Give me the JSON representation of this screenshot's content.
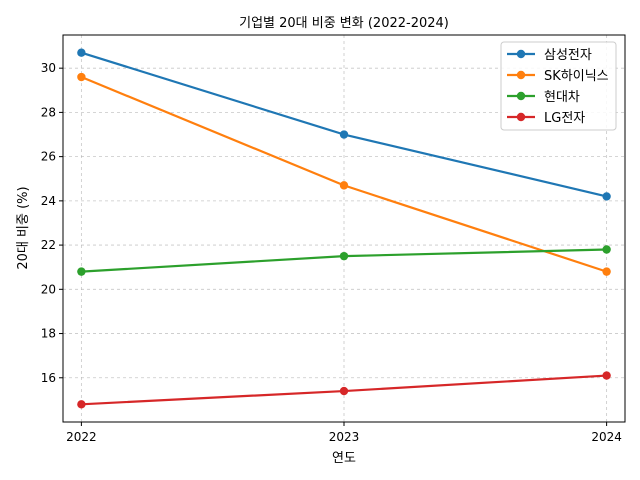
{
  "chart_data": {
    "type": "line",
    "title": "기업별 20대 비중 변화 (2022-2024)",
    "xlabel": "연도",
    "ylabel": "20대 비중 (%)",
    "x": [
      "2022",
      "2023",
      "2024"
    ],
    "xlim": [
      2021.93,
      2024.07
    ],
    "ylim": [
      14.0,
      31.5
    ],
    "yticks": [
      16,
      18,
      20,
      22,
      24,
      26,
      28,
      30
    ],
    "grid": true,
    "legend_position": "top-right",
    "series": [
      {
        "name": "삼성전자",
        "color": "#1f77b4",
        "values": [
          30.7,
          27.0,
          24.2
        ]
      },
      {
        "name": "SK하이닉스",
        "color": "#ff7f0e",
        "values": [
          29.6,
          24.7,
          20.8
        ]
      },
      {
        "name": "현대차",
        "color": "#2ca02c",
        "values": [
          20.8,
          21.5,
          21.8
        ]
      },
      {
        "name": "LG전자",
        "color": "#d62728",
        "values": [
          14.8,
          15.4,
          16.1
        ]
      }
    ]
  }
}
